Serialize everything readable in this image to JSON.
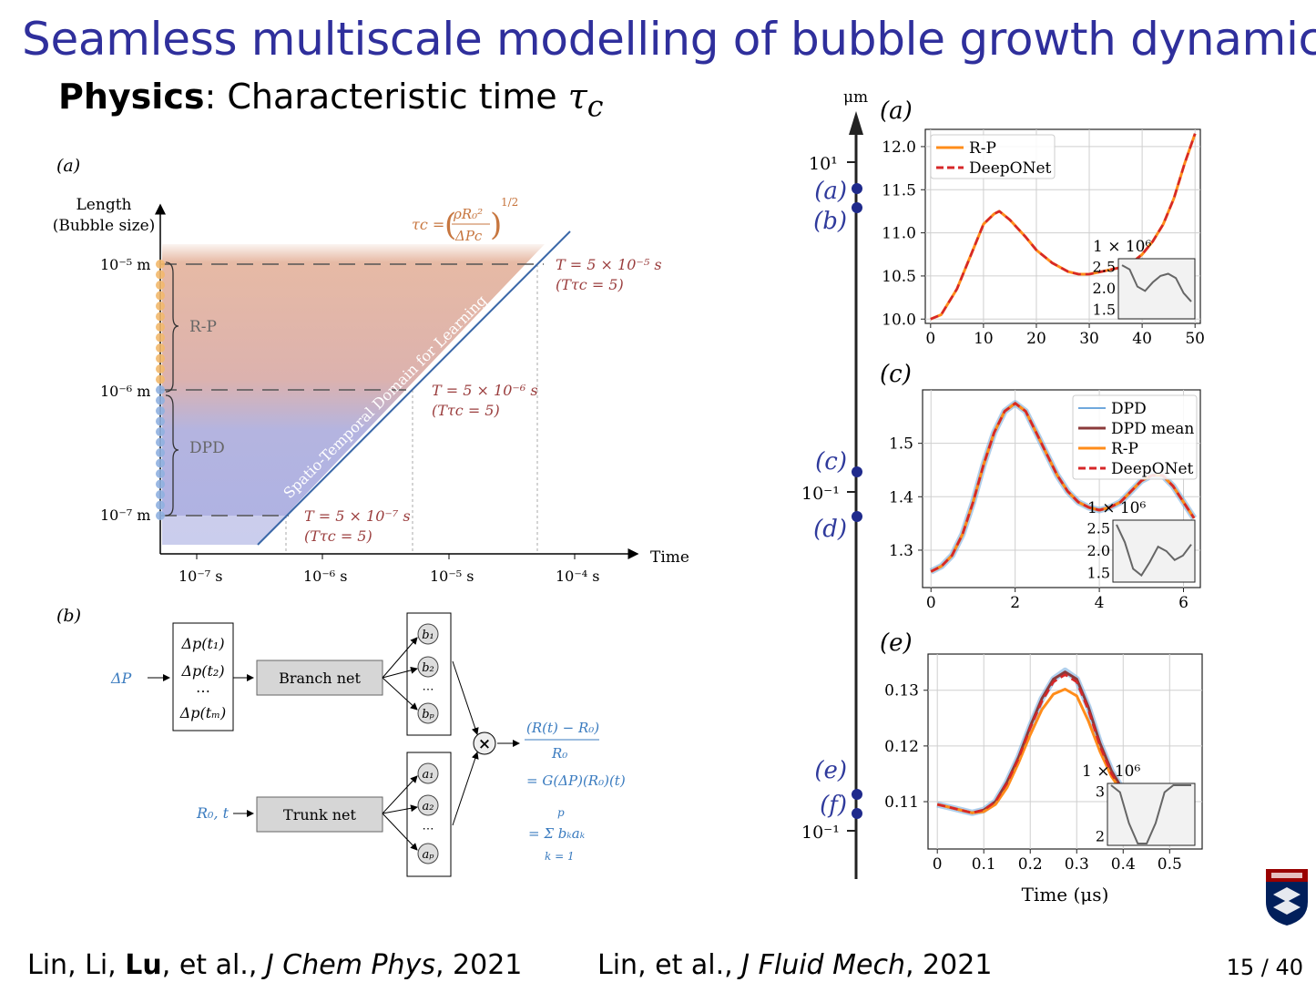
{
  "slide": {
    "title": "Seamless multiscale modelling of bubble growth dynamics",
    "subtitle_bold": "Physics",
    "subtitle_rest": ": Characteristic time ",
    "subtitle_symbol": "τ",
    "subtitle_sub": "c"
  },
  "footer": {
    "cite1_pre": "Lin, Li, ",
    "cite1_bold": "Lu",
    "cite1_mid": ", et al., ",
    "cite1_journal": "J Chem Phys",
    "cite1_year": ", 2021",
    "cite2_pre": "Lin, et al., ",
    "cite2_journal": "J Fluid Mech",
    "cite2_year": ", 2021",
    "page": "15 / 40"
  },
  "left_figure": {
    "panel_a": "(a)",
    "panel_b": "(b)",
    "ylabel_1": "Length",
    "ylabel_2": "(Bubble size)",
    "xlabel": "Time",
    "y_ticks": [
      "10⁻⁵ m",
      "10⁻⁶ m",
      "10⁻⁷ m"
    ],
    "x_ticks": [
      "10⁻⁷ s",
      "10⁻⁶ s",
      "10⁻⁵ s",
      "10⁻⁴ s"
    ],
    "region_rp": "R-P",
    "region_dpd": "DPD",
    "diag_label": "Spatio-Temporal Domain for Learning",
    "tau_lhs": "τc =",
    "tau_num": "ρR₀²",
    "tau_den": "ΔPc",
    "tau_exp": "1/2",
    "t_labels": [
      {
        "t": "T = 5 × 10⁻⁵ s",
        "r": "(Tτc = 5)"
      },
      {
        "t": "T = 5 × 10⁻⁶ s",
        "r": "(Tτc = 5)"
      },
      {
        "t": "T = 5 × 10⁻⁷ s",
        "r": "(Tτc = 5)"
      }
    ],
    "deeponet": {
      "input_p": "ΔP",
      "input_r": "R₀, t",
      "sensors": [
        "Δp(t₁)",
        "Δp(t₂)",
        "⋯",
        "Δp(tₘ)"
      ],
      "branch": "Branch net",
      "trunk": "Trunk net",
      "b_nodes": [
        "b₁",
        "b₂",
        "⋯",
        "bₚ"
      ],
      "a_nodes": [
        "a₁",
        "a₂",
        "⋯",
        "aₚ"
      ],
      "times": "×",
      "eq_num": "(R(t) − R₀)",
      "eq_den": "R₀",
      "eq_line2": "= G(ΔP)(R₀)(t)",
      "eq_sum_top": "p",
      "eq_sum": "= Σ bₖaₖ",
      "eq_sum_bottom": "k = 1"
    }
  },
  "timeline": {
    "unit": "μm",
    "ticks": [
      "10¹",
      "10⁻¹",
      "10⁻¹"
    ],
    "markers": [
      "(a)",
      "(b)",
      "(c)",
      "(d)",
      "(e)",
      "(f)"
    ]
  },
  "chart_data": [
    {
      "type": "line",
      "panel": "(a)",
      "x": [
        0,
        2,
        5,
        8,
        10,
        12,
        13,
        15,
        18,
        20,
        23,
        26,
        28,
        30,
        33,
        36,
        38,
        40,
        42,
        44,
        46,
        48,
        50
      ],
      "series": [
        {
          "name": "R-P",
          "color": "#ff8c1a",
          "values": [
            10.0,
            10.05,
            10.35,
            10.8,
            11.1,
            11.22,
            11.25,
            11.15,
            10.95,
            10.8,
            10.65,
            10.55,
            10.52,
            10.52,
            10.56,
            10.6,
            10.65,
            10.75,
            10.9,
            11.1,
            11.4,
            11.8,
            12.15
          ]
        },
        {
          "name": "DeepONet",
          "color": "#d62728",
          "dashed": true,
          "values": [
            10.0,
            10.05,
            10.35,
            10.8,
            11.1,
            11.22,
            11.25,
            11.15,
            10.95,
            10.8,
            10.65,
            10.55,
            10.52,
            10.52,
            10.56,
            10.6,
            10.65,
            10.75,
            10.9,
            11.1,
            11.4,
            11.8,
            12.15
          ]
        }
      ],
      "xlim": [
        -1,
        51
      ],
      "ylim": [
        9.95,
        12.2
      ],
      "x_ticks": [
        "0",
        "10",
        "20",
        "30",
        "40",
        "50"
      ],
      "y_ticks": [
        "10.0",
        "10.5",
        "11.0",
        "11.5",
        "12.0"
      ],
      "grid": true,
      "legend": "top-left",
      "inset": {
        "label": "1 × 10⁶",
        "y_ticks": [
          "1.5",
          "2.0",
          "2.5"
        ],
        "values": [
          2.55,
          2.45,
          2.05,
          1.95,
          2.15,
          2.3,
          2.35,
          2.25,
          1.9,
          1.7
        ]
      }
    },
    {
      "type": "line",
      "panel": "(c)",
      "x": [
        0,
        0.25,
        0.5,
        0.75,
        1,
        1.25,
        1.5,
        1.75,
        2,
        2.25,
        2.5,
        2.75,
        3,
        3.25,
        3.5,
        3.75,
        4,
        4.25,
        4.5,
        4.75,
        5,
        5.25,
        5.5,
        5.75,
        6,
        6.25
      ],
      "series": [
        {
          "name": "DPD",
          "color": "#6fa8dc",
          "values": [
            1.26,
            1.27,
            1.29,
            1.33,
            1.39,
            1.46,
            1.52,
            1.56,
            1.575,
            1.56,
            1.52,
            1.48,
            1.44,
            1.41,
            1.39,
            1.38,
            1.375,
            1.38,
            1.39,
            1.41,
            1.43,
            1.44,
            1.44,
            1.42,
            1.39,
            1.36
          ]
        },
        {
          "name": "DPD mean",
          "color": "#8b3a3a",
          "values": [
            1.26,
            1.27,
            1.29,
            1.33,
            1.39,
            1.46,
            1.52,
            1.56,
            1.575,
            1.56,
            1.52,
            1.48,
            1.44,
            1.41,
            1.39,
            1.38,
            1.375,
            1.38,
            1.39,
            1.41,
            1.43,
            1.44,
            1.44,
            1.42,
            1.39,
            1.36
          ]
        },
        {
          "name": "R-P",
          "color": "#ff8c1a",
          "values": [
            1.26,
            1.27,
            1.29,
            1.33,
            1.39,
            1.46,
            1.52,
            1.56,
            1.575,
            1.56,
            1.52,
            1.48,
            1.44,
            1.41,
            1.39,
            1.38,
            1.375,
            1.38,
            1.39,
            1.41,
            1.43,
            1.44,
            1.44,
            1.42,
            1.39,
            1.36
          ]
        },
        {
          "name": "DeepONet",
          "color": "#d62728",
          "dashed": true,
          "values": [
            1.26,
            1.27,
            1.29,
            1.33,
            1.39,
            1.46,
            1.52,
            1.56,
            1.575,
            1.56,
            1.52,
            1.48,
            1.44,
            1.41,
            1.39,
            1.38,
            1.375,
            1.38,
            1.39,
            1.41,
            1.43,
            1.44,
            1.44,
            1.42,
            1.39,
            1.36
          ]
        }
      ],
      "xlim": [
        -0.2,
        6.4
      ],
      "ylim": [
        1.23,
        1.6
      ],
      "x_ticks": [
        "0",
        "2",
        "4",
        "6"
      ],
      "y_ticks": [
        "1.3",
        "1.4",
        "1.5"
      ],
      "grid": true,
      "legend": "top-right",
      "inset": {
        "label": "1 × 10⁶",
        "y_ticks": [
          "1.5",
          "2.0",
          "2.5"
        ],
        "values": [
          2.6,
          2.2,
          1.6,
          1.45,
          1.75,
          2.1,
          2.0,
          1.8,
          1.9,
          2.15
        ]
      }
    },
    {
      "type": "line",
      "panel": "(e)",
      "x": [
        0,
        0.025,
        0.05,
        0.075,
        0.1,
        0.125,
        0.15,
        0.175,
        0.2,
        0.225,
        0.25,
        0.275,
        0.3,
        0.325,
        0.35,
        0.375,
        0.4,
        0.425,
        0.45,
        0.475,
        0.5,
        0.525,
        0.55
      ],
      "series": [
        {
          "name": "DPD",
          "color": "#6fa8dc",
          "values": [
            0.1095,
            0.109,
            0.1085,
            0.108,
            0.1085,
            0.11,
            0.1135,
            0.118,
            0.1235,
            0.1285,
            0.132,
            0.1335,
            0.132,
            0.127,
            0.1205,
            0.1155,
            0.112,
            0.1105,
            0.1098,
            0.1095,
            0.1093,
            0.1092,
            0.1092
          ]
        },
        {
          "name": "DPD mean",
          "color": "#8b3a3a",
          "values": [
            0.1095,
            0.109,
            0.1085,
            0.108,
            0.1085,
            0.11,
            0.1135,
            0.118,
            0.1235,
            0.1285,
            0.132,
            0.1333,
            0.132,
            0.127,
            0.1205,
            0.1155,
            0.112,
            0.1105,
            0.1098,
            0.1095,
            0.1093,
            0.1092,
            0.1092
          ]
        },
        {
          "name": "R-P",
          "color": "#ff8c1a",
          "values": [
            0.1095,
            0.109,
            0.1085,
            0.108,
            0.1082,
            0.1095,
            0.1125,
            0.117,
            0.122,
            0.1265,
            0.1293,
            0.1302,
            0.129,
            0.1245,
            0.119,
            0.1145,
            0.1115,
            0.1102,
            0.1097,
            0.1094,
            0.1093,
            0.1092,
            0.1092
          ]
        },
        {
          "name": "DeepONet",
          "color": "#d62728",
          "dashed": true,
          "values": [
            0.1095,
            0.109,
            0.1085,
            0.108,
            0.1085,
            0.11,
            0.1133,
            0.1178,
            0.1232,
            0.128,
            0.1315,
            0.1328,
            0.1315,
            0.1265,
            0.12,
            0.115,
            0.1118,
            0.1103,
            0.1097,
            0.1094,
            0.1093,
            0.1092,
            0.1092
          ]
        }
      ],
      "xlim": [
        -0.02,
        0.57
      ],
      "ylim": [
        0.1015,
        0.1365
      ],
      "x_ticks": [
        "0",
        "0.1",
        "0.2",
        "0.3",
        "0.4",
        "0.5"
      ],
      "y_ticks": [
        "0.11",
        "0.12",
        "0.13"
      ],
      "xlabel": "Time (μs)",
      "grid": true,
      "inset": {
        "label": "1 × 10⁶",
        "y_ticks": [
          "2",
          "3"
        ],
        "values": [
          3.4,
          3.0,
          2.3,
          1.8,
          1.7,
          2.3,
          3.0,
          3.4,
          3.6,
          3.7
        ]
      }
    }
  ],
  "colors": {
    "title": "#2f2f9c",
    "rp_region": "#e5b6a0",
    "dpd_region": "#aeb2e3",
    "eq_blue": "#3a7bbf",
    "t_label_red": "#9a3d3d",
    "tau_orange": "#c7763f",
    "penn_navy": "#011f5b",
    "penn_red": "#990000"
  },
  "icons": {
    "logo": "penn-shield-icon"
  }
}
